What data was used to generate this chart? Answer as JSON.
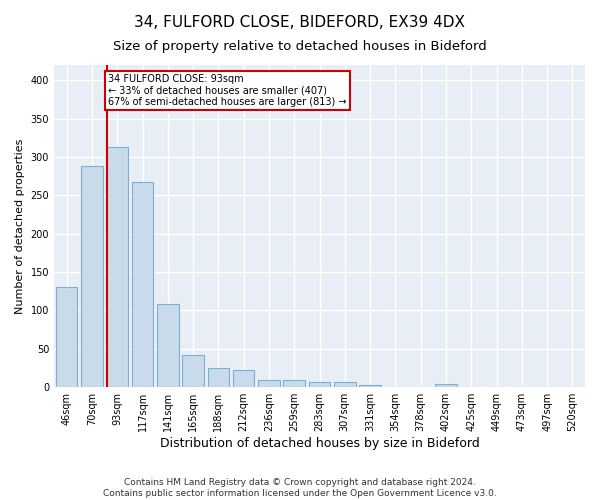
{
  "title1": "34, FULFORD CLOSE, BIDEFORD, EX39 4DX",
  "title2": "Size of property relative to detached houses in Bideford",
  "xlabel": "Distribution of detached houses by size in Bideford",
  "ylabel": "Number of detached properties",
  "categories": [
    "46sqm",
    "70sqm",
    "93sqm",
    "117sqm",
    "141sqm",
    "165sqm",
    "188sqm",
    "212sqm",
    "236sqm",
    "259sqm",
    "283sqm",
    "307sqm",
    "331sqm",
    "354sqm",
    "378sqm",
    "402sqm",
    "425sqm",
    "449sqm",
    "473sqm",
    "497sqm",
    "520sqm"
  ],
  "values": [
    130,
    288,
    313,
    268,
    108,
    42,
    25,
    22,
    10,
    9,
    7,
    7,
    3,
    0,
    0,
    4,
    0,
    0,
    0,
    0,
    0
  ],
  "bar_color": "#c9daea",
  "bar_edge_color": "#7bafd4",
  "highlight_index": 2,
  "highlight_line_color": "#cc0000",
  "annotation_line1": "34 FULFORD CLOSE: 93sqm",
  "annotation_line2": "← 33% of detached houses are smaller (407)",
  "annotation_line3": "67% of semi-detached houses are larger (813) →",
  "annotation_box_color": "#ffffff",
  "annotation_box_edge_color": "#cc0000",
  "ylim": [
    0,
    420
  ],
  "yticks": [
    0,
    50,
    100,
    150,
    200,
    250,
    300,
    350,
    400
  ],
  "background_color": "#e8eef5",
  "grid_color": "#ffffff",
  "footer1": "Contains HM Land Registry data © Crown copyright and database right 2024.",
  "footer2": "Contains public sector information licensed under the Open Government Licence v3.0.",
  "title1_fontsize": 11,
  "title2_fontsize": 9.5,
  "xlabel_fontsize": 9,
  "ylabel_fontsize": 8,
  "tick_fontsize": 7,
  "footer_fontsize": 6.5
}
